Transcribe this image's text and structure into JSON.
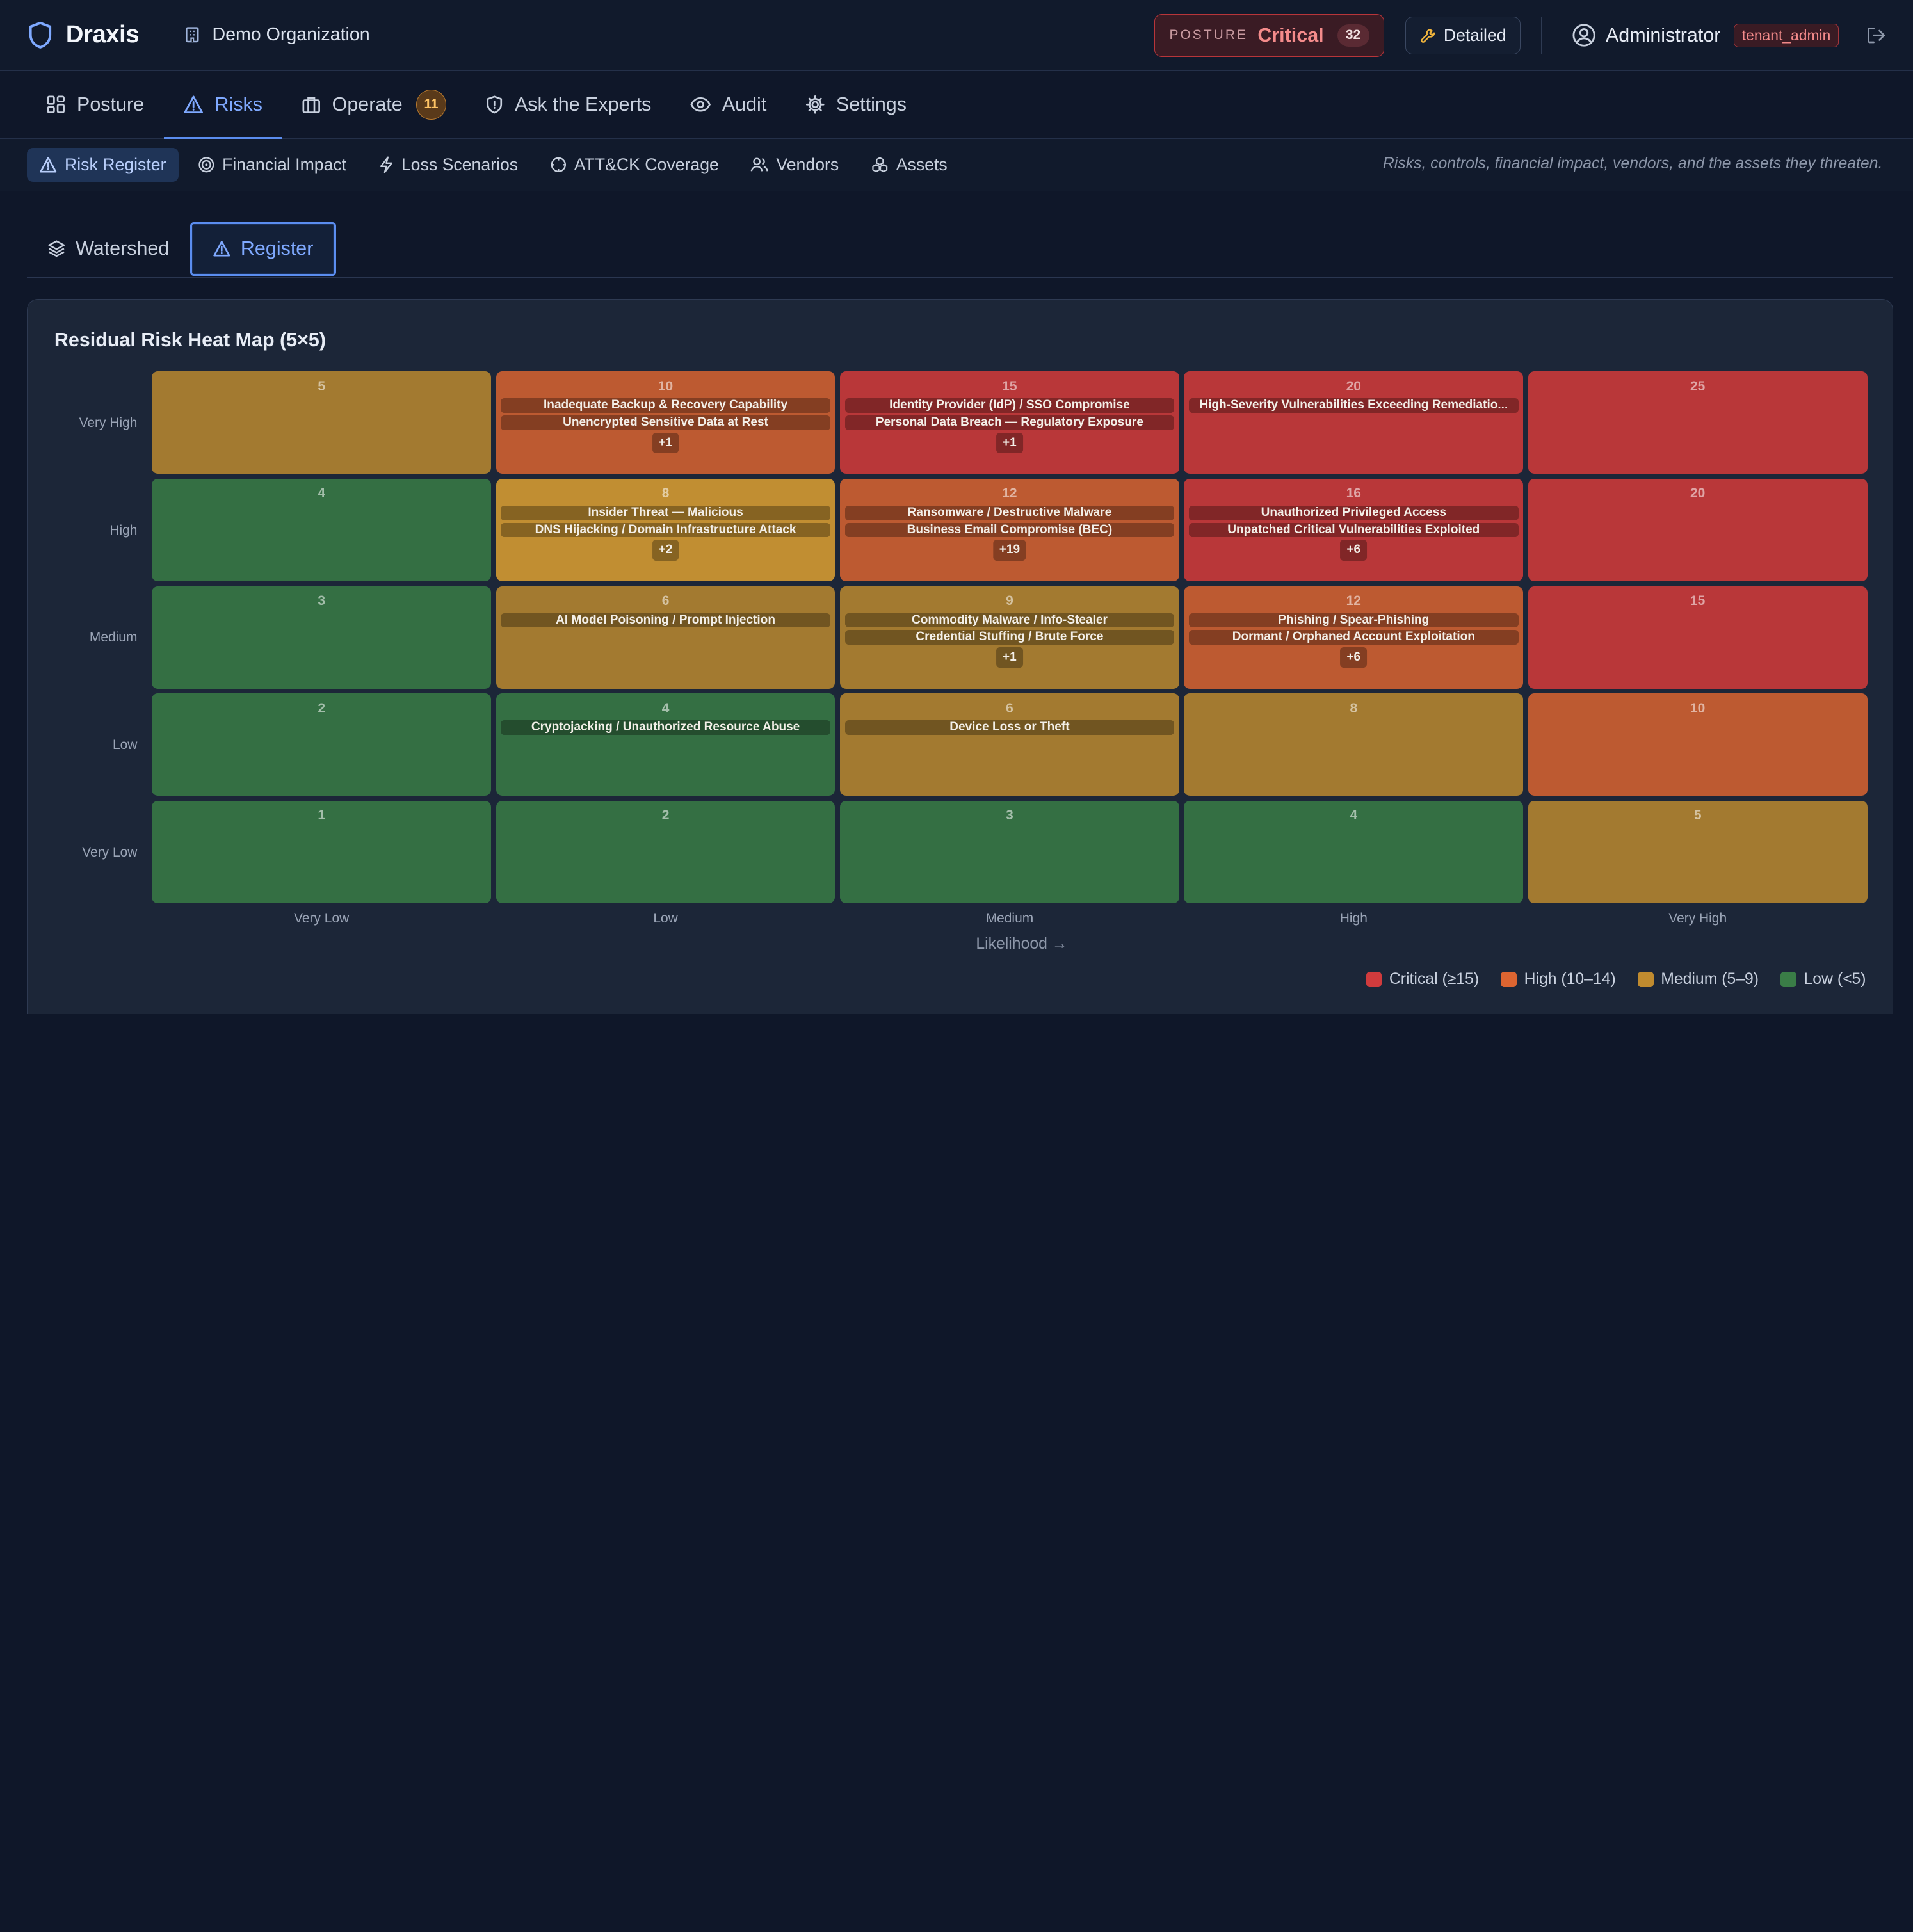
{
  "app": {
    "name": "Draxis",
    "organization": "Demo Organization"
  },
  "header": {
    "posture_label": "POSTURE",
    "posture_value": "Critical",
    "posture_count": "32",
    "mode_button": "Detailed",
    "user_name": "Administrator",
    "user_role": "tenant_admin"
  },
  "main_nav": [
    {
      "label": "Posture",
      "icon": "dashboard-icon"
    },
    {
      "label": "Risks",
      "icon": "warning-triangle-icon",
      "active": true
    },
    {
      "label": "Operate",
      "icon": "briefcase-icon",
      "badge": "11"
    },
    {
      "label": "Ask the Experts",
      "icon": "shield-icon"
    },
    {
      "label": "Audit",
      "icon": "eye-icon"
    },
    {
      "label": "Settings",
      "icon": "gear-icon"
    }
  ],
  "sub_nav": [
    {
      "label": "Risk Register",
      "icon": "warning-triangle-icon",
      "active": true
    },
    {
      "label": "Financial Impact",
      "icon": "target-icon"
    },
    {
      "label": "Loss Scenarios",
      "icon": "lightning-icon"
    },
    {
      "label": "ATT&CK Coverage",
      "icon": "crosshair-icon"
    },
    {
      "label": "Vendors",
      "icon": "users-icon"
    },
    {
      "label": "Assets",
      "icon": "cubes-icon"
    }
  ],
  "sub_nav_description": "Risks, controls, financial impact, vendors, and the assets they threaten.",
  "view_tabs": [
    {
      "label": "Watershed",
      "icon": "layers-icon"
    },
    {
      "label": "Register",
      "icon": "warning-triangle-icon",
      "active": true
    }
  ],
  "heatmap": {
    "title": "Residual Risk Heat Map (5×5)",
    "y_labels": [
      "Very High",
      "High",
      "Medium",
      "Low",
      "Very Low"
    ],
    "x_labels": [
      "Very Low",
      "Low",
      "Medium",
      "High",
      "Very High"
    ],
    "x_axis_title": "Likelihood →",
    "rows": [
      [
        {
          "score": "5",
          "level": "med",
          "risks": []
        },
        {
          "score": "10",
          "level": "high",
          "risks": [
            "Inadequate Backup & Recovery Capability",
            "Unencrypted Sensitive Data at Rest"
          ],
          "more": "+1"
        },
        {
          "score": "15",
          "level": "crit",
          "risks": [
            "Identity Provider (IdP) / SSO Compromise",
            "Personal Data Breach — Regulatory Exposure"
          ],
          "more": "+1"
        },
        {
          "score": "20",
          "level": "crit",
          "risks": [
            "High-Severity Vulnerabilities Exceeding Remediatio..."
          ]
        },
        {
          "score": "25",
          "level": "crit",
          "risks": []
        }
      ],
      [
        {
          "score": "4",
          "level": "low",
          "risks": []
        },
        {
          "score": "8",
          "level": "med8",
          "risks": [
            "Insider Threat — Malicious",
            "DNS Hijacking / Domain Infrastructure Attack"
          ],
          "more": "+2"
        },
        {
          "score": "12",
          "level": "high",
          "risks": [
            "Ransomware / Destructive Malware",
            "Business Email Compromise (BEC)"
          ],
          "more": "+19"
        },
        {
          "score": "16",
          "level": "crit",
          "risks": [
            "Unauthorized Privileged Access",
            "Unpatched Critical Vulnerabilities Exploited"
          ],
          "more": "+6"
        },
        {
          "score": "20",
          "level": "crit",
          "risks": []
        }
      ],
      [
        {
          "score": "3",
          "level": "low",
          "risks": []
        },
        {
          "score": "6",
          "level": "med",
          "risks": [
            "AI Model Poisoning / Prompt Injection"
          ]
        },
        {
          "score": "9",
          "level": "med",
          "risks": [
            "Commodity Malware / Info-Stealer",
            "Credential Stuffing / Brute Force"
          ],
          "more": "+1"
        },
        {
          "score": "12",
          "level": "high",
          "risks": [
            "Phishing / Spear-Phishing",
            "Dormant / Orphaned Account Exploitation"
          ],
          "more": "+6"
        },
        {
          "score": "15",
          "level": "crit",
          "risks": []
        }
      ],
      [
        {
          "score": "2",
          "level": "low",
          "risks": []
        },
        {
          "score": "4",
          "level": "low",
          "risks": [
            "Cryptojacking / Unauthorized Resource Abuse"
          ]
        },
        {
          "score": "6",
          "level": "med",
          "risks": [
            "Device Loss or Theft"
          ]
        },
        {
          "score": "8",
          "level": "med",
          "risks": []
        },
        {
          "score": "10",
          "level": "high",
          "risks": []
        }
      ],
      [
        {
          "score": "1",
          "level": "low",
          "risks": []
        },
        {
          "score": "2",
          "level": "low",
          "risks": []
        },
        {
          "score": "3",
          "level": "low",
          "risks": []
        },
        {
          "score": "4",
          "level": "low",
          "risks": []
        },
        {
          "score": "5",
          "level": "med",
          "risks": []
        }
      ]
    ],
    "legend": [
      {
        "label": "Critical (≥15)",
        "color": "#d13b3d"
      },
      {
        "label": "High (10–14)",
        "color": "#dd6531"
      },
      {
        "label": "Medium (5–9)",
        "color": "#c08b2f"
      },
      {
        "label": "Low (<5)",
        "color": "#3a7d47"
      }
    ]
  }
}
